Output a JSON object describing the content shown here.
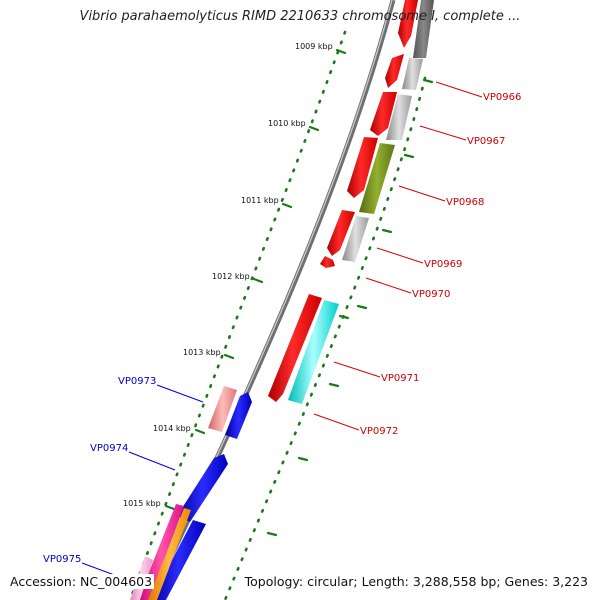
{
  "title": "Vibrio parahaemolyticus RIMD 2210633 chromosome I, complete ...",
  "footer": {
    "accession": "Accession: NC_004603",
    "summary": "Topology: circular; Length: 3,288,558 bp; Genes: 3,223"
  },
  "scale_ticks": [
    "1009 kbp",
    "1010 kbp",
    "1011 kbp",
    "1012 kbp",
    "1013 kbp",
    "1014 kbp",
    "1015 kbp"
  ],
  "gene_labels": [
    {
      "id": "VP0966",
      "color": "#cc0000"
    },
    {
      "id": "VP0967",
      "color": "#cc0000"
    },
    {
      "id": "VP0968",
      "color": "#cc0000"
    },
    {
      "id": "VP0969",
      "color": "#cc0000"
    },
    {
      "id": "VP0970",
      "color": "#cc0000"
    },
    {
      "id": "VP0971",
      "color": "#cc0000"
    },
    {
      "id": "VP0972",
      "color": "#cc0000"
    },
    {
      "id": "VP0973",
      "color": "#0000cc"
    },
    {
      "id": "VP0974",
      "color": "#0000cc"
    },
    {
      "id": "VP0975",
      "color": "#0000cc"
    }
  ],
  "colors": {
    "backbone": "#888888",
    "tick": "#1a7a1a",
    "forward_gene": "#ee0000",
    "reverse_gene": "#0000dd",
    "pseudo_gray": "#aaaaaa",
    "olive": "#7a9a1a",
    "cyan": "#00eeee",
    "salmon": "#ee8888",
    "orange": "#ff9900",
    "magenta": "#ff1493"
  }
}
